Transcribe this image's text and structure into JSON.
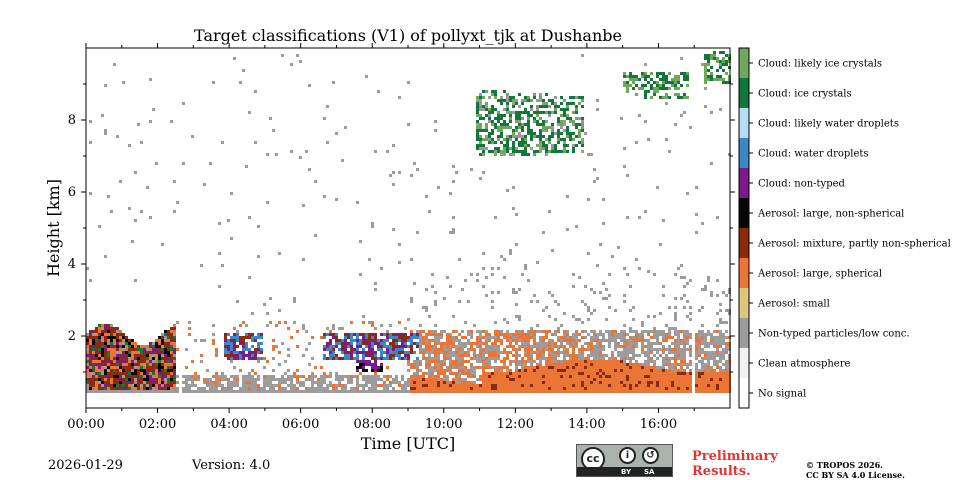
{
  "chart_data": {
    "type": "heatmap",
    "title": "Target classifications (V1) of pollyxt_tjk at Dushanbe",
    "xlabel": "Time [UTC]",
    "ylabel": "Height [km]",
    "xlim_hours": [
      0,
      18
    ],
    "ylim_km": [
      0,
      10
    ],
    "xticks": [
      "00:00",
      "02:00",
      "04:00",
      "06:00",
      "08:00",
      "10:00",
      "12:00",
      "14:00",
      "16:00"
    ],
    "yticks": [
      "2",
      "4",
      "6",
      "8"
    ],
    "ytick_values": [
      2,
      4,
      6,
      8
    ],
    "xtick_values": [
      0,
      2,
      4,
      6,
      8,
      10,
      12,
      14,
      16
    ],
    "classes": [
      {
        "label": "No signal",
        "color": "#ffffff"
      },
      {
        "label": "Clean atmosphere",
        "color": "#f2f2f2"
      },
      {
        "label": "Non-typed particles/low conc.",
        "color": "#9c9c9c"
      },
      {
        "label": "Aerosol: small",
        "color": "#dcc77a"
      },
      {
        "label": "Aerosol: large, spherical",
        "color": "#ea7536"
      },
      {
        "label": "Aerosol: mixture, partly non-spherical",
        "color": "#8c2a0d"
      },
      {
        "label": "Aerosol: large, non-spherical",
        "color": "#050505"
      },
      {
        "label": "Cloud: non-typed",
        "color": "#7b1a8b"
      },
      {
        "label": "Cloud: water droplets",
        "color": "#3d87c8"
      },
      {
        "label": "Cloud: likely water droplets",
        "color": "#b6dcf7"
      },
      {
        "label": "Cloud: ice crystals",
        "color": "#11773a"
      },
      {
        "label": "Cloud: likely ice crystals",
        "color": "#6fa85a"
      }
    ],
    "features": [
      {
        "name": "aerosol layer",
        "class": "Aerosol: large, spherical",
        "start_h": 9.5,
        "end_h": 18,
        "top_km": 2.2
      },
      {
        "name": "low clouds",
        "class": "Cloud: water droplets",
        "start_h": 4.5,
        "end_h": 9.3,
        "top_km": 2.3
      },
      {
        "name": "cirrus",
        "class": "Cloud: ice crystals",
        "start_h": 11,
        "end_h": 17.7,
        "top_km": 9.8
      }
    ]
  },
  "footer": {
    "date": "2026-01-29",
    "version": "Version: 4.0",
    "preliminary": [
      "Preliminary",
      "Results."
    ],
    "license": [
      "© TROPOS 2026.",
      "CC BY SA 4.0 License."
    ],
    "cc_text": "cc",
    "cc_by": "BY",
    "cc_sa": "SA"
  }
}
